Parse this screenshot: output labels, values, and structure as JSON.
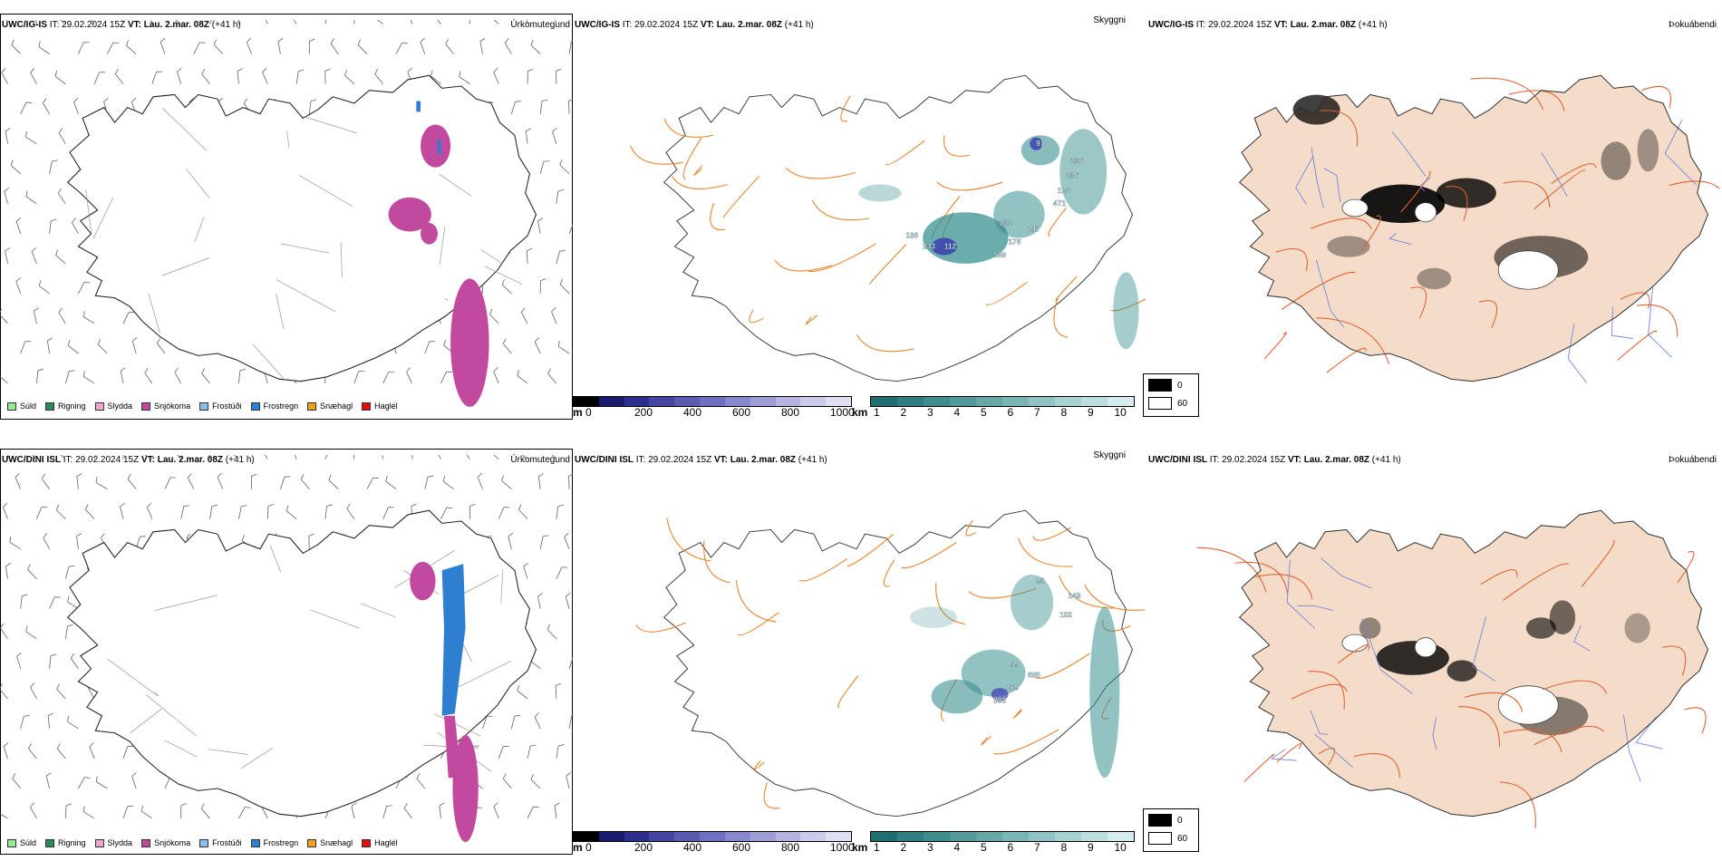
{
  "rows": [
    {
      "model": "UWC/IG-IS",
      "it_label": "IT:",
      "it_value": "29.02.2024 15Z",
      "vt_label": "VT:",
      "vt_value": "Lau. 2.mar. 08Z",
      "lead": "(+41 h)",
      "titles": [
        "Úrkomutegund",
        "Skyggni",
        "Þokuábendi"
      ],
      "cloud_labels": [
        "91",
        "236",
        "236",
        "106",
        "471",
        "232",
        "747",
        "176",
        "569",
        "112",
        "233",
        "136"
      ]
    },
    {
      "model": "UWC/DINI ISL",
      "it_label": "IT:",
      "it_value": "29.02.2024 15Z",
      "vt_label": "VT:",
      "vt_value": "Lau. 2.mar. 08Z",
      "lead": "(+41 h)",
      "titles": [
        "Úrkomutegund",
        "Skyggni",
        "Þokuábendi"
      ],
      "cloud_labels": [
        "93",
        "143",
        "102",
        "49",
        "685",
        "179",
        "393"
      ]
    }
  ],
  "precip_legend": [
    {
      "label": "Súld",
      "color": "#90ee90"
    },
    {
      "label": "Rigning",
      "color": "#2e8b57"
    },
    {
      "label": "Slydda",
      "color": "#f0a8d0"
    },
    {
      "label": "Snjókoma",
      "color": "#c04aa0"
    },
    {
      "label": "Frostúði",
      "color": "#87bfef"
    },
    {
      "label": "Frostregn",
      "color": "#2f7fd0"
    },
    {
      "label": "Snæhagl",
      "color": "#f0a020"
    },
    {
      "label": "Haglél",
      "color": "#e01010"
    }
  ],
  "cloud_base_scale": {
    "unit": "m",
    "ticks": [
      "0",
      "200",
      "400",
      "600",
      "800",
      "1000"
    ],
    "colors": [
      "#000000",
      "#1a1a6e",
      "#2e2e8c",
      "#4646a0",
      "#5a5ab0",
      "#7070c0",
      "#8888cc",
      "#9e9ed6",
      "#b4b4e0",
      "#cacaea",
      "#e0e0f4"
    ]
  },
  "visibility_scale": {
    "unit": "km",
    "ticks": [
      "1",
      "2",
      "3",
      "4",
      "5",
      "6",
      "7",
      "8",
      "9",
      "10"
    ],
    "colors": [
      "#1e7070",
      "#2e7f7f",
      "#3e8c8c",
      "#529a9a",
      "#66a8a8",
      "#7ab6b6",
      "#90c4c4",
      "#a6d2d2",
      "#bcdede",
      "#d4ecec"
    ]
  },
  "fog_legend": [
    {
      "label": "0",
      "color": "#000000"
    },
    {
      "label": "60",
      "color": "#ffffff"
    }
  ],
  "colors": {
    "land": "#f5dcc8",
    "roads": "#e06030",
    "roads_orange": "#e8822a",
    "rivers": "#6a7fe0",
    "snow": "#c24a9e",
    "frost_rain": "#2f7fd0",
    "vis": "#3a9090"
  }
}
